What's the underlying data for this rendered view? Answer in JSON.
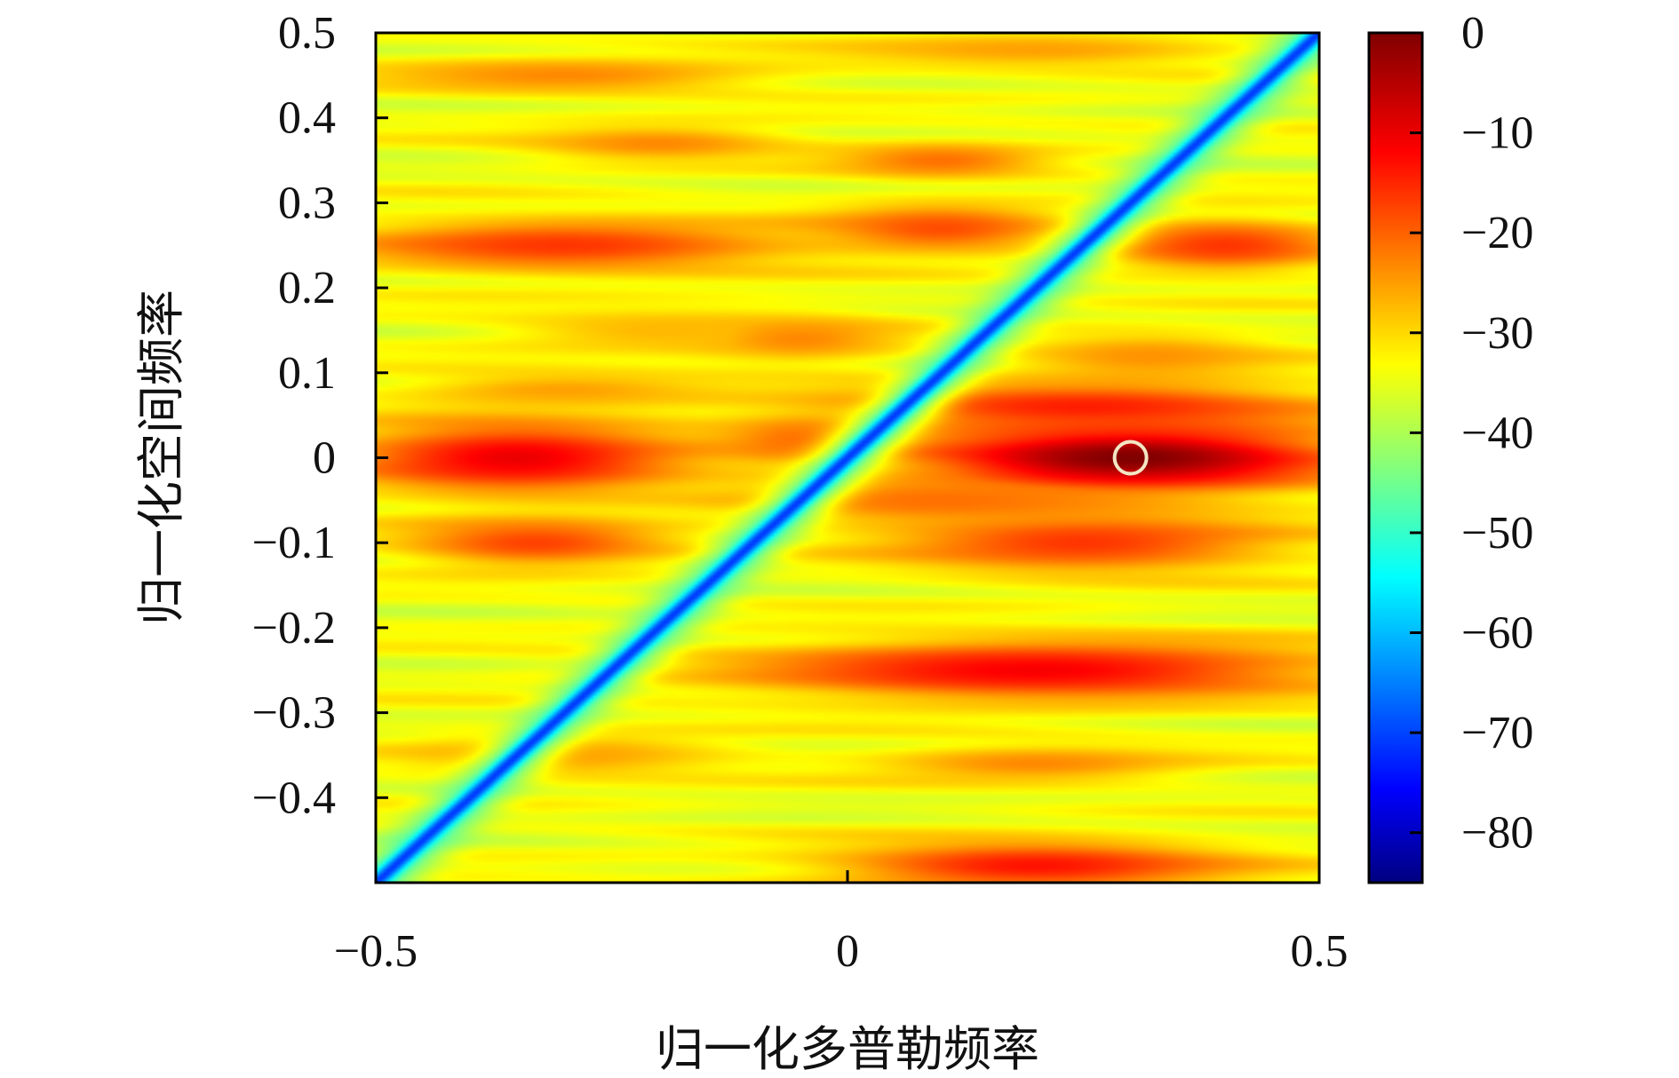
{
  "chart_data": {
    "type": "heatmap",
    "xlabel": "归一化多普勒频率",
    "ylabel": "归一化空间频率",
    "xlim": [
      -0.5,
      0.5
    ],
    "ylim": [
      -0.5,
      0.5
    ],
    "x_ticks": [
      "−0.5",
      "0",
      "0.5"
    ],
    "x_tick_values": [
      -0.5,
      0,
      0.5
    ],
    "y_ticks": [
      "0.5",
      "0.4",
      "0.3",
      "0.2",
      "0.1",
      "0",
      "−0.1",
      "−0.2",
      "−0.3",
      "−0.4"
    ],
    "y_tick_values": [
      0.5,
      0.4,
      0.3,
      0.2,
      0.1,
      0,
      -0.1,
      -0.2,
      -0.3,
      -0.4
    ],
    "colorbar": {
      "range": [
        -85,
        0
      ],
      "ticks": [
        "0",
        "−10",
        "−20",
        "−30",
        "−40",
        "−50",
        "−60",
        "−70",
        "−80"
      ],
      "tick_values": [
        0,
        -10,
        -20,
        -30,
        -40,
        -50,
        -60,
        -70,
        -80
      ],
      "colormap": "jet"
    },
    "background_level": -33,
    "clutter_ridge": {
      "description": "diagonal null from (-0.5,-0.5) to (0.5,0.5)",
      "level": -70
    },
    "lobes": [
      {
        "x": 0.3,
        "y": 0.0,
        "peak": 0,
        "sx": 0.16,
        "sy": 0.028
      },
      {
        "x": -0.35,
        "y": 0.0,
        "peak": -9,
        "sx": 0.13,
        "sy": 0.03
      },
      {
        "x": -0.05,
        "y": 0.02,
        "peak": -20,
        "sx": 0.06,
        "sy": 0.02
      },
      {
        "x": -0.3,
        "y": 0.25,
        "peak": -15,
        "sx": 0.17,
        "sy": 0.022
      },
      {
        "x": 0.1,
        "y": 0.27,
        "peak": -17,
        "sx": 0.09,
        "sy": 0.02
      },
      {
        "x": 0.4,
        "y": 0.25,
        "peak": -15,
        "sx": 0.09,
        "sy": 0.022
      },
      {
        "x": -0.2,
        "y": 0.37,
        "peak": -22,
        "sx": 0.1,
        "sy": 0.015
      },
      {
        "x": 0.1,
        "y": 0.35,
        "peak": -20,
        "sx": 0.08,
        "sy": 0.015
      },
      {
        "x": -0.05,
        "y": 0.14,
        "peak": -22,
        "sx": 0.08,
        "sy": 0.02
      },
      {
        "x": 0.32,
        "y": 0.12,
        "peak": -23,
        "sx": 0.1,
        "sy": 0.02
      },
      {
        "x": 0.25,
        "y": 0.06,
        "peak": -13,
        "sx": 0.18,
        "sy": 0.02
      },
      {
        "x": 0.2,
        "y": -0.25,
        "peak": -10,
        "sx": 0.22,
        "sy": 0.025
      },
      {
        "x": -0.33,
        "y": -0.1,
        "peak": -16,
        "sx": 0.1,
        "sy": 0.02
      },
      {
        "x": 0.25,
        "y": -0.1,
        "peak": -15,
        "sx": 0.15,
        "sy": 0.025
      },
      {
        "x": 0.2,
        "y": -0.48,
        "peak": -12,
        "sx": 0.15,
        "sy": 0.02
      },
      {
        "x": -0.3,
        "y": -0.35,
        "peak": -24,
        "sx": 0.12,
        "sy": 0.02
      },
      {
        "x": 0.2,
        "y": -0.36,
        "peak": -22,
        "sx": 0.12,
        "sy": 0.015
      },
      {
        "x": -0.3,
        "y": 0.45,
        "peak": -22,
        "sx": 0.15,
        "sy": 0.015
      },
      {
        "x": 0.2,
        "y": 0.48,
        "peak": -24,
        "sx": 0.15,
        "sy": 0.015
      },
      {
        "x": -0.2,
        "y": 0.15,
        "peak": -26,
        "sx": 0.12,
        "sy": 0.02
      },
      {
        "x": 0.1,
        "y": -0.05,
        "peak": -20,
        "sx": 0.15,
        "sy": 0.02
      },
      {
        "x": -0.3,
        "y": 0.08,
        "peak": -24,
        "sx": 0.12,
        "sy": 0.015
      }
    ],
    "marker": {
      "shape": "circle",
      "x": 0.3,
      "y": 0.0
    }
  }
}
